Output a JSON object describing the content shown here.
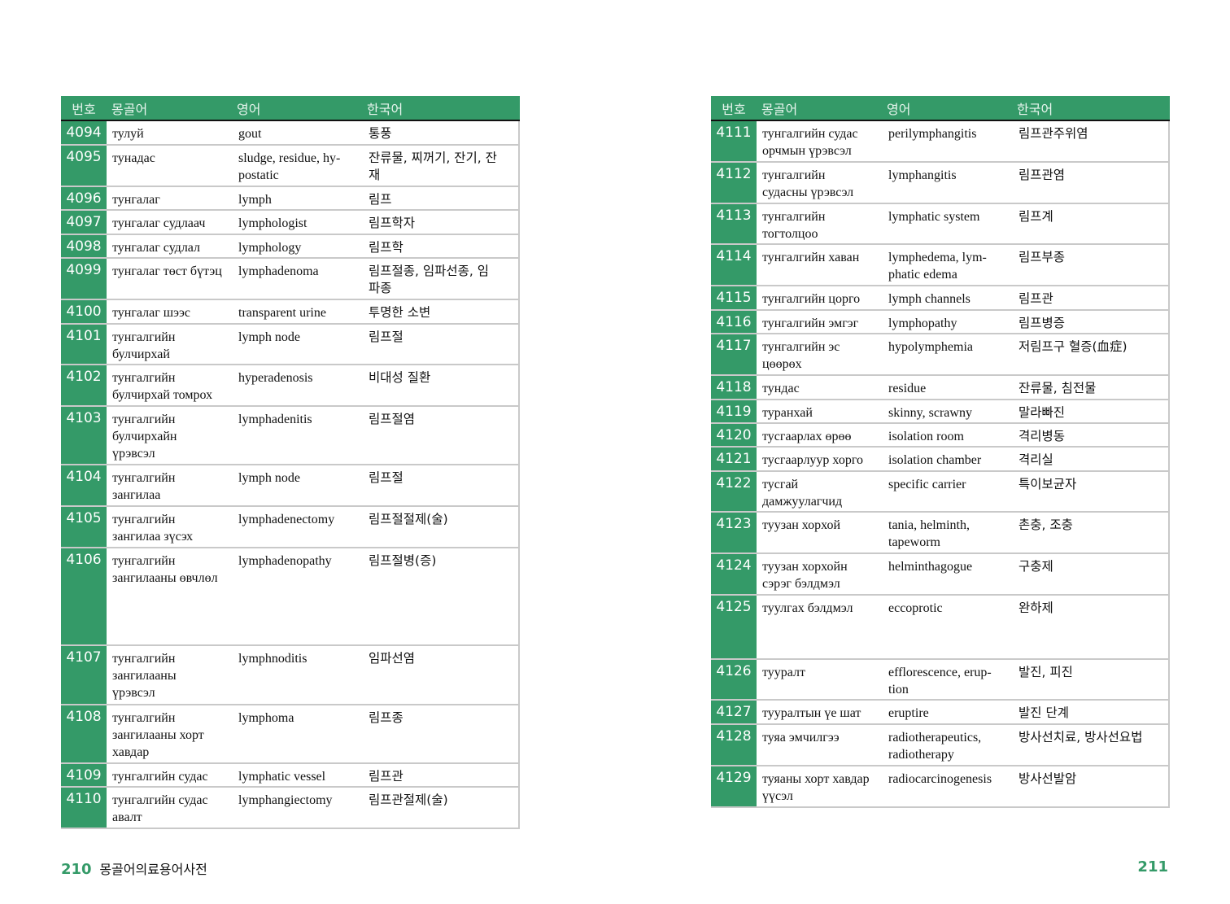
{
  "colors": {
    "accent": "#349a68"
  },
  "left_page": {
    "headers": [
      "번호",
      "몽골어",
      "영어",
      "한국어"
    ],
    "rows": [
      {
        "no": "4094",
        "mn": "тулуй",
        "en": "gout",
        "ko": "통풍"
      },
      {
        "no": "4095",
        "mn": "тунадас",
        "en": "sludge, residue, hy-\npostatic",
        "ko": "잔류물, 찌꺼기, 잔기, 잔\n재"
      },
      {
        "no": "4096",
        "mn": "тунгалаг",
        "en": "lymph",
        "ko": "림프"
      },
      {
        "no": "4097",
        "mn": "тунгалаг судлаач",
        "en": "lymphologist",
        "ko": "림프학자"
      },
      {
        "no": "4098",
        "mn": "тунгалаг судлал",
        "en": "lymphology",
        "ko": "림프학"
      },
      {
        "no": "4099",
        "mn": "тунгалаг төст бүтэц",
        "en": "lymphadenoma",
        "ko": "림프절종, 임파선종, 임\n파종"
      },
      {
        "no": "4100",
        "mn": "тунгалаг шээс",
        "en": "transparent urine",
        "ko": "투명한 소변"
      },
      {
        "no": "4101",
        "mn": "тунгалгийн\nбулчирхай",
        "en": "lymph node",
        "ko": "림프절"
      },
      {
        "no": "4102",
        "mn": "тунгалгийн\nбулчирхай томрох",
        "en": "hyperadenosis",
        "ko": "비대성 질환"
      },
      {
        "no": "4103",
        "mn": "тунгалгийн\nбулчирхайн\nүрэвсэл",
        "en": "lymphadenitis",
        "ko": "림프절염"
      },
      {
        "no": "4104",
        "mn": "тунгалгийн\nзангилаа",
        "en": "lymph node",
        "ko": "림프절"
      },
      {
        "no": "4105",
        "mn": "тунгалгийн\nзангилаа зүсэх",
        "en": "lymphadenectomy",
        "ko": "림프절절제(술)"
      },
      {
        "no": "4106",
        "mn": "тунгалгийн\nзангилааны өвчлөл",
        "en": "lymphadenopathy",
        "ko": "림프절병(증)"
      },
      {
        "no": "4107",
        "mn": "тунгалгийн\nзангилааны\nүрэвсэл",
        "en": "lymphnoditis",
        "ko": "임파선염"
      },
      {
        "no": "4108",
        "mn": "тунгалгийн\nзангилааны хорт\nхавдар",
        "en": "lymphoma",
        "ko": "림프종"
      },
      {
        "no": "4109",
        "mn": "тунгалгийн судас",
        "en": "lymphatic vessel",
        "ko": "림프관"
      },
      {
        "no": "4110",
        "mn": "тунгалгийн судас\nавалт",
        "en": "lymphangiectomy",
        "ko": "림프관절제(술)"
      }
    ],
    "page_number": "210",
    "book_title": "몽골어의료용어사전"
  },
  "right_page": {
    "headers": [
      "번호",
      "몽골어",
      "영어",
      "한국어"
    ],
    "rows": [
      {
        "no": "4111",
        "mn": "тунгалгийн судас\nорчмын үрэвсэл",
        "en": "perilymphangitis",
        "ko": "림프관주위염"
      },
      {
        "no": "4112",
        "mn": "тунгалгийн\nсудасны үрэвсэл",
        "en": "lymphangitis",
        "ko": "림프관염"
      },
      {
        "no": "4113",
        "mn": "тунгалгийн\nтогтолцоо",
        "en": "lymphatic system",
        "ko": "림프계"
      },
      {
        "no": "4114",
        "mn": "тунгалгийн хаван",
        "en": "lymphedema, lym-\nphatic edema",
        "ko": "림프부종"
      },
      {
        "no": "4115",
        "mn": "тунгалгийн цорго",
        "en": "lymph channels",
        "ko": "림프관"
      },
      {
        "no": "4116",
        "mn": "тунгалгийн эмгэг",
        "en": "lymphopathy",
        "ko": "림프병증"
      },
      {
        "no": "4117",
        "mn": "тунгалгийн эс\nцөөрөх",
        "en": "hypolymphemia",
        "ko": "저림프구 혈증(血症)"
      },
      {
        "no": "4118",
        "mn": "тундас",
        "en": "residue",
        "ko": "잔류물, 침전물"
      },
      {
        "no": "4119",
        "mn": "туранхай",
        "en": "skinny, scrawny",
        "ko": "말라빠진"
      },
      {
        "no": "4120",
        "mn": "тусгаарлах өрөө",
        "en": "isolation room",
        "ko": "격리병동"
      },
      {
        "no": "4121",
        "mn": "тусгаарлуур хорго",
        "en": "isolation chamber",
        "ko": "격리실"
      },
      {
        "no": "4122",
        "mn": "тусгай\nдамжуулагчид",
        "en": "specific carrier",
        "ko": "특이보균자"
      },
      {
        "no": "4123",
        "mn": "туузан хорхой",
        "en": "tania, helminth,\ntapeworm",
        "ko": "촌충, 조충"
      },
      {
        "no": "4124",
        "mn": "туузан хорхойн\nсэрэг бэлдмэл",
        "en": "helminthagogue",
        "ko": "구충제"
      },
      {
        "no": "4125",
        "mn": "туулгах бэлдмэл",
        "en": "eccoprotic",
        "ko": "완하제"
      },
      {
        "no": "4126",
        "mn": "тууралт",
        "en": "efflorescence, erup-\ntion",
        "ko": "발진, 피진"
      },
      {
        "no": "4127",
        "mn": "тууралтын үе шат",
        "en": "eruptire",
        "ko": "발진 단계"
      },
      {
        "no": "4128",
        "mn": "туяа эмчилгээ",
        "en": "radiotherapeutics,\nradiotherapy",
        "ko": "방사선치료, 방사선요법"
      },
      {
        "no": "4129",
        "mn": "туяаны хорт хавдар\nүүсэл",
        "en": "radiocarcinogenesis",
        "ko": "방사선발암"
      }
    ],
    "page_number": "211"
  }
}
